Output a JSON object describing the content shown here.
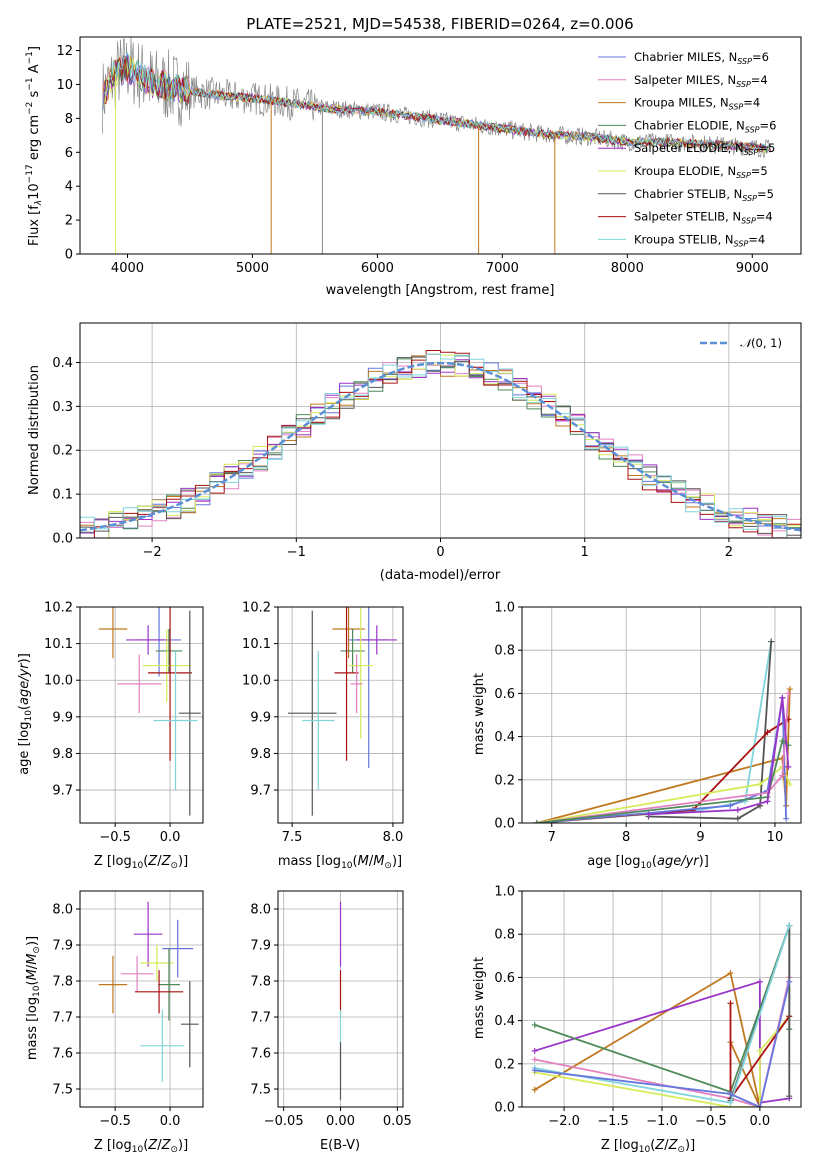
{
  "colors": {
    "chabrier_miles": "#6677dd",
    "salpeter_miles": "#e380c0",
    "kroupa_miles": "#c07820",
    "chabrier_elodie": "#4f8a5a",
    "salpeter_elodie": "#9a33c6",
    "kroupa_elodie": "#d7ea5a",
    "chabrier_stelib": "#555555",
    "salpeter_stelib": "#aa1111",
    "kroupa_stelib": "#7fd4dc",
    "data_spectrum": "#888888",
    "normal_fit": "#5b8fd6",
    "orange_fit": "#e07a1c"
  },
  "chart_data": [
    {
      "type": "line",
      "id": "spectrum",
      "title": "PLATE=2521, MJD=54538, FIBERID=0264, z=0.006",
      "xlabel": "wavelength [Angstrom, rest frame]",
      "ylabel": "Flux [f$_\\lambda$10$^{-17}$ erg cm$^{-2}$ s$^{-1}$ A$^{-1}$]",
      "xlim": [
        3620,
        9390
      ],
      "ylim": [
        0,
        12.8
      ],
      "xticks": [
        "4000",
        "5000",
        "6000",
        "7000",
        "8000",
        "9000"
      ],
      "yticks": [
        "0",
        "2",
        "4",
        "6",
        "8",
        "10",
        "12"
      ],
      "grid": false,
      "legend_position": "top-right",
      "legend": [
        "Chabrier MILES, N$_{SSP}$=6",
        "Salpeter MILES, N$_{SSP}$=4",
        "Kroupa MILES, N$_{SSP}$=4",
        "Chabrier ELODIE, N$_{SSP}$=6",
        "Salpeter ELODIE, N$_{SSP}$=5",
        "Kroupa ELODIE, N$_{SSP}$=5",
        "Chabrier STELIB, N$_{SSP}$=5",
        "Salpeter STELIB, N$_{SSP}$=4",
        "Kroupa STELIB, N$_{SSP}$=4"
      ],
      "continuum": {
        "x": [
          3800,
          3900,
          4000,
          4200,
          4500,
          4800,
          5000,
          5300,
          5600,
          6000,
          6500,
          6800,
          7000,
          7300,
          7500,
          7700,
          8000,
          8300,
          8600,
          9000,
          9150
        ],
        "y": [
          9.3,
          10.6,
          11.0,
          10.1,
          9.6,
          9.3,
          9.2,
          8.9,
          8.6,
          8.4,
          7.9,
          7.6,
          7.4,
          7.1,
          7.0,
          6.9,
          6.6,
          6.6,
          6.5,
          6.3,
          6.2
        ]
      }
    },
    {
      "type": "line",
      "id": "residuals",
      "xlabel": "(data-model)/error",
      "ylabel": "Normed distribution",
      "xlim": [
        -2.5,
        2.5
      ],
      "ylim": [
        0,
        0.49
      ],
      "xticks": [
        "−2",
        "−1",
        "0",
        "1",
        "2"
      ],
      "yticks": [
        "0.0",
        "0.1",
        "0.2",
        "0.3",
        "0.4"
      ],
      "grid": true,
      "legend_position": "top-right",
      "legend": [
        "$\\mathcal{N}(0,1)$"
      ]
    },
    {
      "type": "scatter",
      "id": "age_vs_z",
      "xlabel": "Z [log$_{10}$(Z/Z$_\\odot$)]",
      "ylabel": "age  [log$_{10}$(age/yr)]",
      "xlim": [
        -0.82,
        0.3
      ],
      "ylim": [
        9.61,
        10.2
      ],
      "xticks": [
        "−0.5",
        "0.0"
      ],
      "yticks": [
        "9.7",
        "9.8",
        "9.9",
        "10.0",
        "10.1",
        "10.2"
      ],
      "grid": true,
      "points": [
        {
          "series": "Kroupa MILES",
          "x": -0.52,
          "y": 10.14,
          "xerr": 0.13,
          "yerr": 0.08
        },
        {
          "series": "Chabrier MILES",
          "x": -0.1,
          "y": 10.11,
          "xerr": 0.2,
          "yerr": 0.1
        },
        {
          "series": "Salpeter ELODIE",
          "x": -0.2,
          "y": 10.11,
          "xerr": 0.2,
          "yerr": 0.04
        },
        {
          "series": "Chabrier ELODIE",
          "x": -0.01,
          "y": 10.08,
          "xerr": 0.12,
          "yerr": 0.06
        },
        {
          "series": "Kroupa ELODIE",
          "x": -0.03,
          "y": 10.04,
          "xerr": 0.22,
          "yerr": 0.1
        },
        {
          "series": "Salpeter STELIB",
          "x": 0.0,
          "y": 10.02,
          "xerr": 0.2,
          "yerr": 0.24
        },
        {
          "series": "Salpeter MILES",
          "x": -0.28,
          "y": 9.99,
          "xerr": 0.2,
          "yerr": 0.08
        },
        {
          "series": "Chabrier STELIB",
          "x": 0.18,
          "y": 9.91,
          "xerr": 0.1,
          "yerr": 0.28
        },
        {
          "series": "Kroupa STELIB",
          "x": 0.05,
          "y": 9.89,
          "xerr": 0.2,
          "yerr": 0.19
        }
      ]
    },
    {
      "type": "scatter",
      "id": "age_vs_mass",
      "xlabel": "mass [log$_{10}$(M/M$_\\odot$)]",
      "ylabel": "",
      "xlim": [
        7.43,
        8.05
      ],
      "ylim": [
        9.61,
        10.2
      ],
      "xticks": [
        "7.5",
        "8.0"
      ],
      "yticks": [
        "9.7",
        "9.8",
        "9.9",
        "10.0",
        "10.1",
        "10.2"
      ],
      "grid": true,
      "points": [
        {
          "series": "Kroupa MILES",
          "x": 7.78,
          "y": 10.14,
          "xerr": 0.08,
          "yerr": 0.08
        },
        {
          "series": "Chabrier MILES",
          "x": 7.88,
          "y": 10.11,
          "xerr": 0.1,
          "yerr": 0.35
        },
        {
          "series": "Salpeter ELODIE",
          "x": 7.92,
          "y": 10.11,
          "xerr": 0.1,
          "yerr": 0.04
        },
        {
          "series": "Chabrier ELODIE",
          "x": 7.8,
          "y": 10.08,
          "xerr": 0.06,
          "yerr": 0.06
        },
        {
          "series": "Kroupa ELODIE",
          "x": 7.84,
          "y": 10.04,
          "xerr": 0.06,
          "yerr": 0.2
        },
        {
          "series": "Salpeter STELIB",
          "x": 7.77,
          "y": 10.02,
          "xerr": 0.06,
          "yerr": 0.24
        },
        {
          "series": "Salpeter MILES",
          "x": 7.82,
          "y": 9.99,
          "xerr": 0.03,
          "yerr": 0.08
        },
        {
          "series": "Chabrier STELIB",
          "x": 7.6,
          "y": 9.91,
          "xerr": 0.12,
          "yerr": 0.28
        },
        {
          "series": "Kroupa STELIB",
          "x": 7.63,
          "y": 9.89,
          "xerr": 0.08,
          "yerr": 0.19
        }
      ]
    },
    {
      "type": "line",
      "id": "mass_weight_vs_age",
      "xlabel": "age  [log$_{10}$(age/yr)]",
      "ylabel": "mass weight",
      "xlim": [
        6.6,
        10.35
      ],
      "ylim": [
        0,
        1
      ],
      "xticks": [
        "7",
        "8",
        "9",
        "10"
      ],
      "yticks": [
        "0.0",
        "0.2",
        "0.4",
        "0.6",
        "0.8",
        "1.0"
      ],
      "grid": true,
      "series": [
        {
          "key": "kroupa_miles",
          "x": [
            6.8,
            10.1,
            10.15,
            10.2
          ],
          "y": [
            0.0,
            0.3,
            0.08,
            0.62
          ]
        },
        {
          "key": "kroupa_stelib",
          "x": [
            6.8,
            9.0,
            9.6,
            9.95
          ],
          "y": [
            0.0,
            0.06,
            0.1,
            0.84
          ]
        },
        {
          "key": "chabrier_stelib",
          "x": [
            8.3,
            9.5,
            9.8,
            9.95
          ],
          "y": [
            0.03,
            0.02,
            0.08,
            0.84
          ]
        },
        {
          "key": "salpeter_stelib",
          "x": [
            6.8,
            8.9,
            9.9,
            10.18
          ],
          "y": [
            0.0,
            0.06,
            0.42,
            0.48
          ]
        },
        {
          "key": "kroupa_elodie",
          "x": [
            6.8,
            9.8,
            10.1,
            10.2
          ],
          "y": [
            0.0,
            0.18,
            0.26,
            0.18
          ]
        },
        {
          "key": "chabrier_miles",
          "x": [
            6.8,
            9.4,
            9.9,
            10.1,
            10.15
          ],
          "y": [
            0.0,
            0.08,
            0.15,
            0.58,
            0.02
          ]
        },
        {
          "key": "salpeter_miles",
          "x": [
            6.8,
            9.9,
            10.1,
            10.18
          ],
          "y": [
            0.0,
            0.14,
            0.22,
            0.6
          ]
        },
        {
          "key": "chabrier_elodie",
          "x": [
            6.8,
            9.9,
            10.1,
            10.18
          ],
          "y": [
            0.0,
            0.12,
            0.38,
            0.36
          ]
        },
        {
          "key": "salpeter_elodie",
          "x": [
            8.3,
            9.5,
            9.9,
            10.1,
            10.18
          ],
          "y": [
            0.04,
            0.06,
            0.1,
            0.58,
            0.26
          ]
        }
      ]
    },
    {
      "type": "scatter",
      "id": "mass_vs_z",
      "xlabel": "Z [log$_{10}$(Z/Z$_\\odot$)]",
      "ylabel": "mass [log$_{10}$(M/M$_\\odot$)]",
      "xlim": [
        -0.82,
        0.3
      ],
      "ylim": [
        7.45,
        8.05
      ],
      "xticks": [
        "−0.5",
        "0.0"
      ],
      "yticks": [
        "7.5",
        "7.6",
        "7.7",
        "7.8",
        "7.9",
        "8.0"
      ],
      "grid": true,
      "points": [
        {
          "series": "Kroupa MILES",
          "x": -0.52,
          "y": 7.79,
          "xerr": 0.13,
          "yerr": 0.08
        },
        {
          "series": "Salpeter ELODIE",
          "x": -0.2,
          "y": 7.93,
          "xerr": 0.13,
          "yerr": 0.09
        },
        {
          "series": "Chabrier MILES",
          "x": 0.07,
          "y": 7.89,
          "xerr": 0.14,
          "yerr": 0.08
        },
        {
          "series": "Salpeter MILES",
          "x": -0.3,
          "y": 7.82,
          "xerr": 0.15,
          "yerr": 0.05
        },
        {
          "series": "Kroupa ELODIE",
          "x": -0.12,
          "y": 7.85,
          "xerr": 0.15,
          "yerr": 0.05
        },
        {
          "series": "Chabrier ELODIE",
          "x": -0.01,
          "y": 7.79,
          "xerr": 0.1,
          "yerr": 0.1
        },
        {
          "series": "Salpeter STELIB",
          "x": -0.1,
          "y": 7.77,
          "xerr": 0.22,
          "yerr": 0.06
        },
        {
          "series": "Chabrier STELIB",
          "x": 0.18,
          "y": 7.68,
          "xerr": 0.08,
          "yerr": 0.12
        },
        {
          "series": "Kroupa STELIB",
          "x": -0.07,
          "y": 7.62,
          "xerr": 0.2,
          "yerr": 0.1
        }
      ]
    },
    {
      "type": "scatter",
      "id": "mass_vs_ebv",
      "xlabel": "E(B-V)",
      "ylabel": "",
      "xlim": [
        -0.055,
        0.055
      ],
      "ylim": [
        7.45,
        8.05
      ],
      "xticks": [
        "−0.05",
        "0.00",
        "0.05"
      ],
      "yticks": [
        "7.5",
        "7.6",
        "7.7",
        "7.8",
        "7.9",
        "8.0"
      ],
      "grid": true,
      "points": [
        {
          "series": "Salpeter ELODIE",
          "x": 0.0,
          "y": 7.93,
          "yerr": 0.09
        },
        {
          "series": "Salpeter STELIB",
          "x": 0.0,
          "y": 7.77,
          "yerr": 0.06
        },
        {
          "series": "Kroupa STELIB",
          "x": 0.0,
          "y": 7.62,
          "yerr": 0.1
        },
        {
          "series": "Chabrier STELIB",
          "x": 0.0,
          "y": 7.55,
          "yerr": 0.08
        }
      ]
    },
    {
      "type": "line",
      "id": "mass_weight_vs_z",
      "xlabel": "Z [log$_{10}$(Z/Z$_\\odot$)]",
      "ylabel": "mass weight",
      "xlim": [
        -2.43,
        0.42
      ],
      "ylim": [
        0,
        1
      ],
      "xticks": [
        "−2.0",
        "−1.5",
        "−1.0",
        "−0.5",
        "0.0"
      ],
      "yticks": [
        "0.0",
        "0.2",
        "0.4",
        "0.6",
        "0.8",
        "1.0"
      ],
      "grid": true,
      "series": [
        {
          "key": "kroupa_miles",
          "x": [
            -2.3,
            -0.3,
            0.0,
            -0.3
          ],
          "y": [
            0.08,
            0.62,
            0.0,
            0.3
          ]
        },
        {
          "key": "salpeter_elodie",
          "x": [
            -2.3,
            0.0,
            0.0,
            0.3
          ],
          "y": [
            0.26,
            0.58,
            0.02,
            0.04
          ]
        },
        {
          "key": "salpeter_miles",
          "x": [
            -2.3,
            -0.3,
            0.0,
            0.3
          ],
          "y": [
            0.22,
            0.04,
            0.0,
            0.6
          ]
        },
        {
          "key": "chabrier_elodie",
          "x": [
            -2.3,
            -0.3,
            0.3,
            0.3
          ],
          "y": [
            0.38,
            0.07,
            0.84,
            0.36
          ]
        },
        {
          "key": "kroupa_elodie",
          "x": [
            -2.3,
            -0.3,
            0.0,
            0.0,
            0.3
          ],
          "y": [
            0.16,
            0.0,
            0.0,
            0.26,
            0.42
          ]
        },
        {
          "key": "salpeter_stelib",
          "x": [
            -0.3,
            -0.3,
            0.3
          ],
          "y": [
            0.48,
            0.04,
            0.42
          ]
        },
        {
          "key": "chabrier_stelib",
          "x": [
            -0.3,
            0.3,
            0.3
          ],
          "y": [
            0.03,
            0.84,
            0.05
          ]
        },
        {
          "key": "kroupa_stelib",
          "x": [
            -2.3,
            -0.3,
            0.3
          ],
          "y": [
            0.18,
            0.02,
            0.84
          ]
        },
        {
          "key": "chabrier_miles",
          "x": [
            -2.3,
            -0.3,
            0.0,
            0.3
          ],
          "y": [
            0.17,
            0.06,
            0.0,
            0.58
          ]
        }
      ]
    }
  ]
}
